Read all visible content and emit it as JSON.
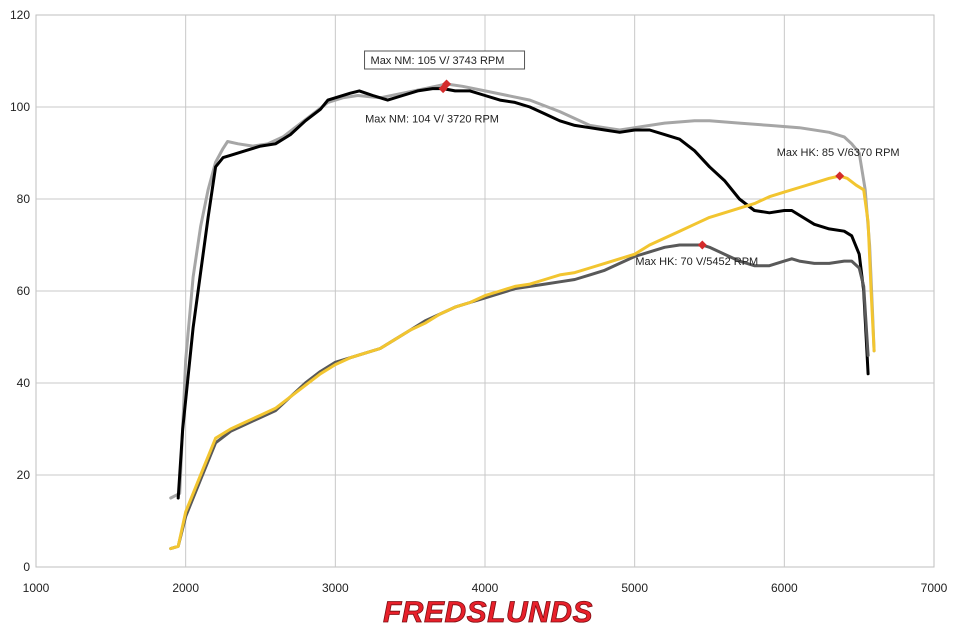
{
  "logo_text": "FREDSLUNDS",
  "chart_data": {
    "type": "line",
    "xlim": [
      1000,
      7000
    ],
    "ylim": [
      0,
      120
    ],
    "x_ticks": [
      "1000",
      "2000",
      "3000",
      "4000",
      "5000",
      "6000",
      "7000"
    ],
    "y_ticks": [
      "0",
      "20",
      "40",
      "60",
      "80",
      "100",
      "120"
    ],
    "grid": true,
    "colors": {
      "torque_gray": "#a6a6a6",
      "torque_black": "#000000",
      "power_dark": "#595959",
      "power_yellow": "#f2c530",
      "peak_marker": "#d42b2b"
    },
    "series": [
      {
        "key": "torque_gray",
        "x": [
          1900,
          1960,
          2000,
          2050,
          2100,
          2150,
          2200,
          2250,
          2280,
          2350,
          2450,
          2550,
          2650,
          2750,
          2850,
          2950,
          3050,
          3150,
          3300,
          3450,
          3600,
          3743,
          3850,
          4000,
          4150,
          4300,
          4500,
          4700,
          4800,
          4900,
          5000,
          5200,
          5400,
          5500,
          5700,
          5900,
          6100,
          6300,
          6400,
          6450,
          6500,
          6540,
          6570,
          6590,
          6600
        ],
        "y": [
          15,
          16,
          45,
          63,
          74,
          82,
          88,
          91,
          92.5,
          92,
          91.5,
          92,
          93.5,
          96,
          98.5,
          101,
          102,
          102.5,
          102,
          103,
          104,
          105,
          104.5,
          103.5,
          102.5,
          101.5,
          99,
          96,
          95.5,
          95,
          95.5,
          96.5,
          97,
          97,
          96.5,
          96,
          95.5,
          94.5,
          93.5,
          92,
          90,
          82,
          70,
          55,
          47
        ]
      },
      {
        "key": "torque_black",
        "x": [
          1950,
          1980,
          2050,
          2100,
          2150,
          2200,
          2250,
          2300,
          2400,
          2500,
          2600,
          2700,
          2800,
          2900,
          2950,
          3000,
          3100,
          3160,
          3250,
          3350,
          3450,
          3550,
          3650,
          3720,
          3800,
          3900,
          4000,
          4100,
          4200,
          4300,
          4400,
          4500,
          4600,
          4700,
          4800,
          4900,
          5000,
          5100,
          5200,
          5300,
          5400,
          5500,
          5600,
          5700,
          5800,
          5900,
          6000,
          6050,
          6100,
          6200,
          6300,
          6400,
          6450,
          6500,
          6530,
          6560
        ],
        "y": [
          15,
          30,
          52,
          64,
          76,
          87,
          89,
          89.5,
          90.5,
          91.5,
          92,
          94,
          97,
          99.5,
          101.5,
          102,
          103,
          103.5,
          102.5,
          101.5,
          102.5,
          103.5,
          104,
          104,
          103.5,
          103.5,
          102.5,
          101.5,
          101,
          100,
          98.5,
          97,
          96,
          95.5,
          95,
          94.5,
          95,
          95,
          94,
          93,
          90.5,
          87,
          84,
          80,
          77.5,
          77,
          77.5,
          77.5,
          76.5,
          74.5,
          73.5,
          73,
          72,
          68,
          60,
          42
        ]
      },
      {
        "key": "power_dark",
        "x": [
          1900,
          1950,
          2000,
          2100,
          2200,
          2300,
          2400,
          2500,
          2600,
          2700,
          2800,
          2900,
          3000,
          3100,
          3200,
          3300,
          3400,
          3500,
          3600,
          3700,
          3800,
          3900,
          4000,
          4100,
          4200,
          4300,
          4400,
          4500,
          4600,
          4700,
          4800,
          4900,
          5000,
          5100,
          5200,
          5300,
          5452,
          5500,
          5600,
          5700,
          5800,
          5900,
          6000,
          6050,
          6100,
          6200,
          6300,
          6400,
          6450,
          6500,
          6530,
          6560
        ],
        "y": [
          4,
          4.5,
          11,
          19,
          27,
          29.5,
          31,
          32.5,
          34,
          37,
          40,
          42.5,
          44.5,
          45.5,
          46.5,
          47.5,
          49.5,
          51.5,
          53.5,
          55,
          56.5,
          57.5,
          58.5,
          59.5,
          60.5,
          61,
          61.5,
          62,
          62.5,
          63.5,
          64.5,
          66,
          67.5,
          68.5,
          69.5,
          70,
          70,
          69.5,
          68,
          66.5,
          65.5,
          65.5,
          66.5,
          67,
          66.5,
          66,
          66,
          66.5,
          66.5,
          65,
          61,
          46
        ]
      },
      {
        "key": "power_yellow",
        "x": [
          1900,
          1950,
          2000,
          2100,
          2200,
          2300,
          2400,
          2500,
          2600,
          2700,
          2800,
          2900,
          3000,
          3100,
          3200,
          3300,
          3400,
          3500,
          3600,
          3700,
          3800,
          3900,
          4000,
          4100,
          4200,
          4300,
          4400,
          4500,
          4600,
          4700,
          4800,
          4900,
          5000,
          5100,
          5200,
          5300,
          5400,
          5500,
          5600,
          5700,
          5800,
          5900,
          6000,
          6100,
          6200,
          6300,
          6370,
          6420,
          6480,
          6530,
          6560,
          6580,
          6600
        ],
        "y": [
          4,
          4.5,
          12,
          20,
          28,
          30,
          31.5,
          33,
          34.5,
          37,
          39.5,
          42,
          44,
          45.5,
          46.5,
          47.5,
          49.5,
          51.5,
          53,
          55,
          56.5,
          57.5,
          59,
          60,
          61,
          61.5,
          62.5,
          63.5,
          64,
          65,
          66,
          67,
          68,
          70,
          71.5,
          73,
          74.5,
          76,
          77,
          78,
          79,
          80.5,
          81.5,
          82.5,
          83.5,
          84.5,
          85,
          84.5,
          83,
          82,
          75,
          60,
          47
        ]
      }
    ],
    "annotations": [
      {
        "text": "Max NM: 105 V/ 3743 RPM",
        "x": 3743,
        "y": 105,
        "boxed": true
      },
      {
        "text": "Max NM: 104 V/ 3720 RPM",
        "x": 3720,
        "y": 104,
        "boxed": false
      },
      {
        "text": "Max HK: 85 V/6370 RPM",
        "x": 6370,
        "y": 85,
        "boxed": false
      },
      {
        "text": "Max HK: 70 V/5452 RPM",
        "x": 5452,
        "y": 70,
        "boxed": false
      }
    ]
  }
}
